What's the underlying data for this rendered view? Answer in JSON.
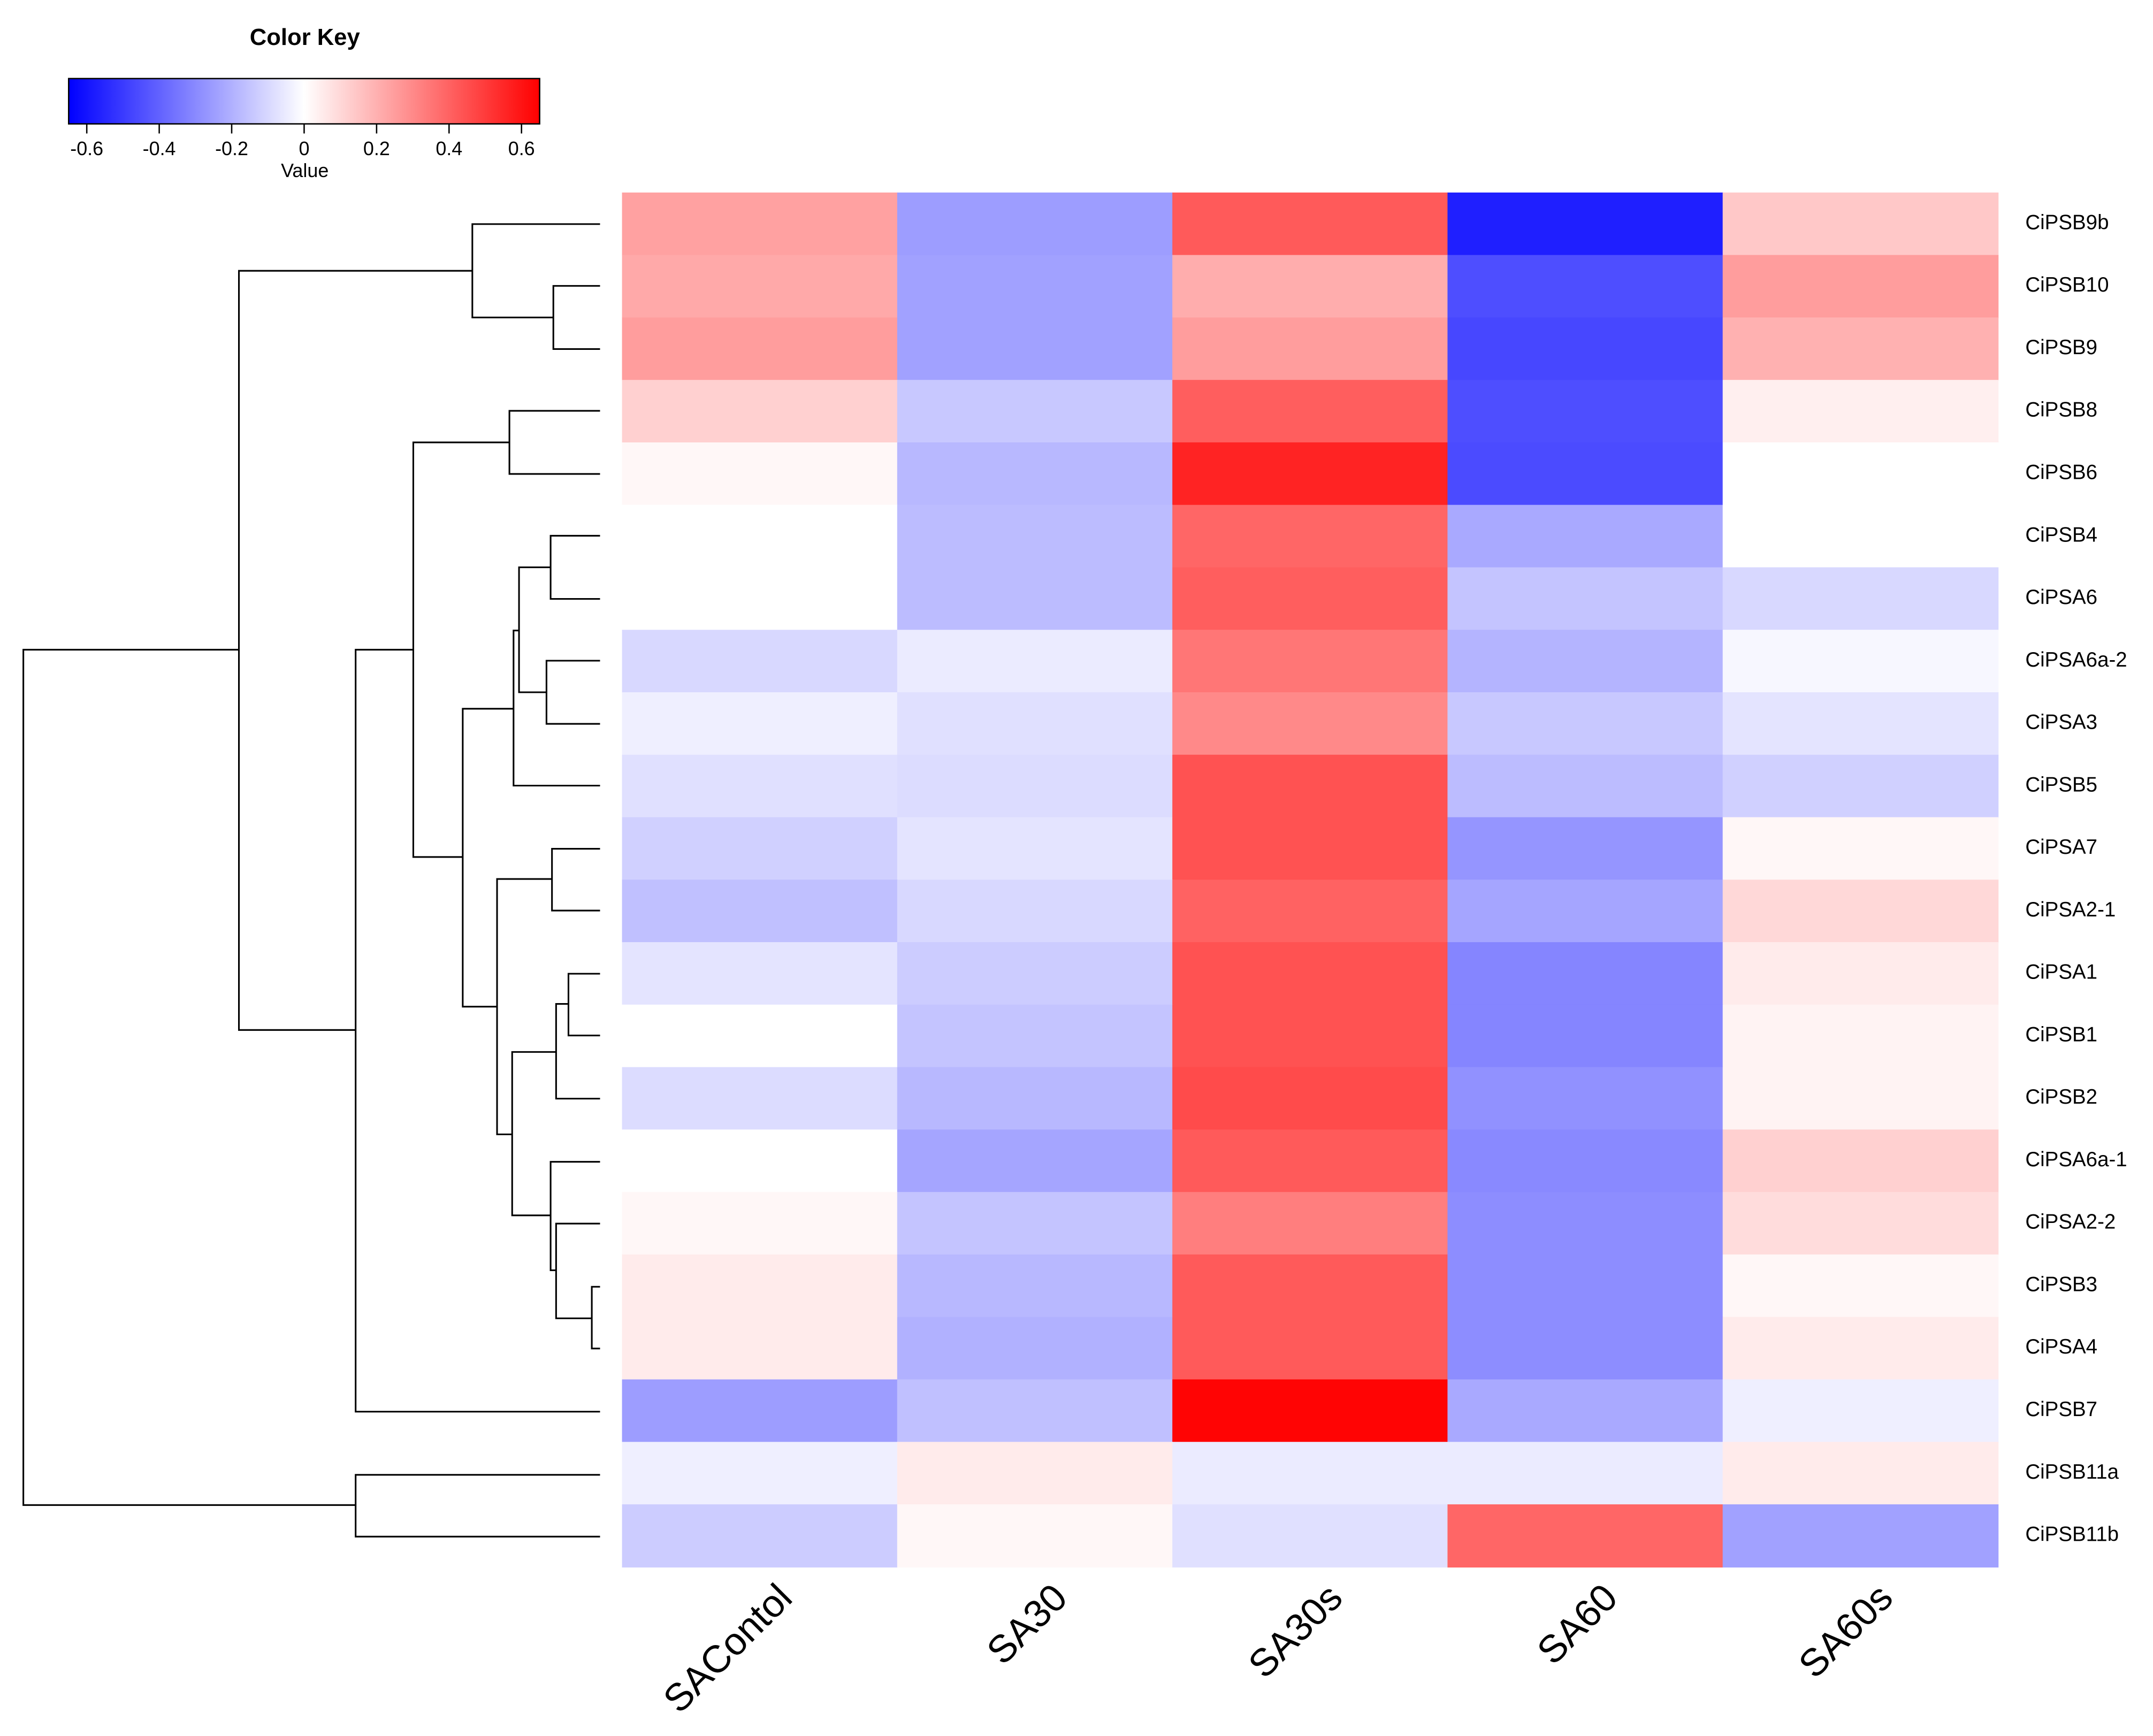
{
  "chart_data": {
    "type": "heatmap",
    "columns": [
      "SAContol",
      "SA30",
      "SA30s",
      "SA60",
      "SA60s"
    ],
    "rows": [
      "CiPSB9b",
      "CiPSB10",
      "CiPSB9",
      "CiPSB8",
      "CiPSB6",
      "CiPSB4",
      "CiPSA6",
      "CiPSA6a-2",
      "CiPSA3",
      "CiPSB5",
      "CiPSA7",
      "CiPSA2-1",
      "CiPSA1",
      "CiPSB1",
      "CiPSB2",
      "CiPSA6a-1",
      "CiPSA2-2",
      "CiPSB3",
      "CiPSA4",
      "CiPSB7",
      "CiPSB11a",
      "CiPSB11b"
    ],
    "values": [
      [
        0.24,
        -0.25,
        0.42,
        -0.57,
        0.14
      ],
      [
        0.22,
        -0.24,
        0.21,
        -0.45,
        0.25
      ],
      [
        0.25,
        -0.24,
        0.25,
        -0.47,
        0.2
      ],
      [
        0.12,
        -0.14,
        0.41,
        -0.45,
        0.04
      ],
      [
        0.02,
        -0.18,
        0.56,
        -0.46,
        0.0
      ],
      [
        0.0,
        -0.17,
        0.39,
        -0.22,
        0.0
      ],
      [
        0.0,
        -0.17,
        0.41,
        -0.15,
        -0.1
      ],
      [
        -0.1,
        -0.05,
        0.35,
        -0.19,
        -0.02
      ],
      [
        -0.04,
        -0.08,
        0.3,
        -0.14,
        -0.07
      ],
      [
        -0.08,
        -0.09,
        0.44,
        -0.17,
        -0.12
      ],
      [
        -0.12,
        -0.07,
        0.44,
        -0.27,
        0.02
      ],
      [
        -0.16,
        -0.1,
        0.4,
        -0.23,
        0.1
      ],
      [
        -0.07,
        -0.13,
        0.44,
        -0.31,
        0.05
      ],
      [
        0.0,
        -0.15,
        0.44,
        -0.31,
        0.03
      ],
      [
        -0.09,
        -0.18,
        0.46,
        -0.28,
        0.03
      ],
      [
        0.0,
        -0.23,
        0.42,
        -0.3,
        0.12
      ],
      [
        0.02,
        -0.15,
        0.33,
        -0.29,
        0.09
      ],
      [
        0.05,
        -0.18,
        0.42,
        -0.29,
        0.02
      ],
      [
        0.05,
        -0.2,
        0.42,
        -0.29,
        0.05
      ],
      [
        -0.25,
        -0.16,
        0.64,
        -0.22,
        -0.04
      ],
      [
        -0.04,
        0.05,
        -0.05,
        -0.05,
        0.05
      ],
      [
        -0.13,
        0.02,
        -0.08,
        0.39,
        -0.24
      ]
    ],
    "color_key": {
      "title": "Color Key",
      "xlabel": "Value",
      "xlim": [
        -0.65,
        0.65
      ],
      "xticks": [
        -0.6,
        -0.4,
        -0.2,
        0,
        0.2,
        0.4,
        0.6
      ],
      "colors": [
        "#0000ff",
        "#ffffff",
        "#ff0000"
      ]
    }
  }
}
